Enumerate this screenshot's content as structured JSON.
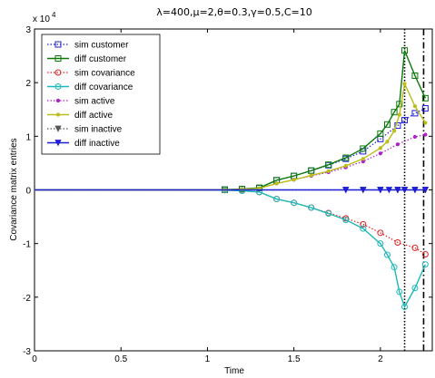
{
  "chart_data": {
    "type": "line",
    "title": "λ=400,μ=2,θ=0.3,γ=0.5,C=10",
    "xlabel": "Time",
    "ylabel": "Covariance matrix entries",
    "y_exponent_label": "x 10",
    "y_exponent_power": "4",
    "xlim": [
      0,
      2.3
    ],
    "ylim": [
      -30000,
      30000
    ],
    "xticks": [
      0,
      0.5,
      1,
      1.5,
      2
    ],
    "xtick_labels": [
      "0",
      "0.5",
      "1",
      "1.5",
      "2"
    ],
    "yticks": [
      -30000,
      -20000,
      -10000,
      0,
      10000,
      20000,
      30000
    ],
    "ytick_labels": [
      "-3",
      "-2",
      "-1",
      "0",
      "1",
      "2",
      "3"
    ],
    "grid": false,
    "legend_position": "top-left",
    "vlines": [
      {
        "x": 2.14,
        "style": "dotted",
        "color": "#000000"
      },
      {
        "x": 2.25,
        "style": "dashdot",
        "color": "#000000"
      }
    ],
    "series": [
      {
        "name": "sim customer",
        "color": "#1f1fd6",
        "line": "dotted",
        "marker": "square",
        "points": [
          [
            0.0,
            0
          ],
          [
            0.1,
            0
          ],
          [
            0.2,
            0
          ],
          [
            0.3,
            0
          ],
          [
            0.4,
            0
          ],
          [
            0.5,
            0
          ],
          [
            0.6,
            0
          ],
          [
            0.7,
            0
          ],
          [
            0.8,
            0
          ],
          [
            0.9,
            0
          ],
          [
            1.0,
            0
          ],
          [
            1.1,
            50
          ],
          [
            1.2,
            150
          ],
          [
            1.3,
            350
          ],
          [
            1.4,
            1800
          ],
          [
            1.5,
            2600
          ],
          [
            1.6,
            3600
          ],
          [
            1.7,
            4600
          ],
          [
            1.8,
            5800
          ],
          [
            1.9,
            7200
          ],
          [
            2.0,
            9500
          ],
          [
            2.1,
            12000
          ],
          [
            2.14,
            13000
          ],
          [
            2.2,
            14300
          ],
          [
            2.26,
            15200
          ]
        ]
      },
      {
        "name": "diff customer",
        "color": "#0a7a0a",
        "line": "solid",
        "marker": "square",
        "points": [
          [
            0.0,
            0
          ],
          [
            0.1,
            0
          ],
          [
            0.2,
            0
          ],
          [
            0.3,
            0
          ],
          [
            0.4,
            0
          ],
          [
            0.5,
            0
          ],
          [
            0.6,
            0
          ],
          [
            0.7,
            0
          ],
          [
            0.8,
            0
          ],
          [
            0.9,
            0
          ],
          [
            1.0,
            0
          ],
          [
            1.1,
            50
          ],
          [
            1.2,
            150
          ],
          [
            1.3,
            400
          ],
          [
            1.4,
            1800
          ],
          [
            1.5,
            2600
          ],
          [
            1.6,
            3600
          ],
          [
            1.7,
            4700
          ],
          [
            1.8,
            6000
          ],
          [
            1.9,
            7700
          ],
          [
            2.0,
            10500
          ],
          [
            2.04,
            12200
          ],
          [
            2.08,
            14500
          ],
          [
            2.11,
            16000
          ],
          [
            2.14,
            26000
          ],
          [
            2.2,
            21300
          ],
          [
            2.26,
            17100
          ]
        ]
      },
      {
        "name": "sim covariance",
        "color": "#e02020",
        "line": "dotted",
        "marker": "circle",
        "points": [
          [
            0.0,
            0
          ],
          [
            0.1,
            0
          ],
          [
            0.2,
            0
          ],
          [
            0.3,
            0
          ],
          [
            0.4,
            0
          ],
          [
            0.5,
            0
          ],
          [
            0.6,
            0
          ],
          [
            0.7,
            0
          ],
          [
            0.8,
            0
          ],
          [
            0.9,
            0
          ],
          [
            1.0,
            0
          ],
          [
            1.1,
            -50
          ],
          [
            1.2,
            -150
          ],
          [
            1.3,
            -400
          ],
          [
            1.4,
            -1700
          ],
          [
            1.5,
            -2400
          ],
          [
            1.6,
            -3300
          ],
          [
            1.7,
            -4300
          ],
          [
            1.8,
            -5300
          ],
          [
            1.9,
            -6400
          ],
          [
            2.0,
            -8000
          ],
          [
            2.1,
            -9800
          ],
          [
            2.2,
            -10800
          ],
          [
            2.26,
            -12000
          ]
        ]
      },
      {
        "name": "diff covariance",
        "color": "#1fb8b8",
        "line": "solid",
        "marker": "circle",
        "points": [
          [
            0.0,
            0
          ],
          [
            0.1,
            0
          ],
          [
            0.2,
            0
          ],
          [
            0.3,
            0
          ],
          [
            0.4,
            0
          ],
          [
            0.5,
            0
          ],
          [
            0.6,
            0
          ],
          [
            0.7,
            0
          ],
          [
            0.8,
            0
          ],
          [
            0.9,
            0
          ],
          [
            1.0,
            0
          ],
          [
            1.1,
            -50
          ],
          [
            1.2,
            -150
          ],
          [
            1.3,
            -400
          ],
          [
            1.4,
            -1700
          ],
          [
            1.5,
            -2400
          ],
          [
            1.6,
            -3300
          ],
          [
            1.7,
            -4400
          ],
          [
            1.8,
            -5600
          ],
          [
            1.9,
            -7200
          ],
          [
            2.0,
            -10000
          ],
          [
            2.04,
            -12100
          ],
          [
            2.08,
            -14400
          ],
          [
            2.11,
            -19000
          ],
          [
            2.14,
            -21800
          ],
          [
            2.2,
            -18300
          ],
          [
            2.26,
            -13900
          ]
        ]
      },
      {
        "name": "sim active",
        "color": "#b020c8",
        "line": "dotted",
        "marker": "dot",
        "points": [
          [
            0.0,
            0
          ],
          [
            0.1,
            0
          ],
          [
            0.2,
            0
          ],
          [
            0.3,
            0
          ],
          [
            0.4,
            0
          ],
          [
            0.5,
            0
          ],
          [
            0.6,
            0
          ],
          [
            0.7,
            0
          ],
          [
            0.8,
            0
          ],
          [
            0.9,
            0
          ],
          [
            1.0,
            0
          ],
          [
            1.1,
            50
          ],
          [
            1.2,
            100
          ],
          [
            1.3,
            300
          ],
          [
            1.4,
            1200
          ],
          [
            1.5,
            1900
          ],
          [
            1.6,
            2600
          ],
          [
            1.7,
            3300
          ],
          [
            1.8,
            4200
          ],
          [
            1.9,
            5300
          ],
          [
            2.0,
            6800
          ],
          [
            2.1,
            8500
          ],
          [
            2.2,
            9900
          ],
          [
            2.26,
            10300
          ]
        ]
      },
      {
        "name": "diff active",
        "color": "#bcbc1a",
        "line": "solid",
        "marker": "dot",
        "points": [
          [
            0.0,
            0
          ],
          [
            0.1,
            0
          ],
          [
            0.2,
            0
          ],
          [
            0.3,
            0
          ],
          [
            0.4,
            0
          ],
          [
            0.5,
            0
          ],
          [
            0.6,
            0
          ],
          [
            0.7,
            0
          ],
          [
            0.8,
            0
          ],
          [
            0.9,
            0
          ],
          [
            1.0,
            0
          ],
          [
            1.1,
            50
          ],
          [
            1.2,
            100
          ],
          [
            1.3,
            300
          ],
          [
            1.4,
            1200
          ],
          [
            1.5,
            1900
          ],
          [
            1.6,
            2700
          ],
          [
            1.7,
            3500
          ],
          [
            1.8,
            4500
          ],
          [
            1.9,
            5800
          ],
          [
            2.0,
            7800
          ],
          [
            2.04,
            9000
          ],
          [
            2.08,
            11000
          ],
          [
            2.11,
            14000
          ],
          [
            2.14,
            19800
          ],
          [
            2.2,
            15600
          ],
          [
            2.26,
            12500
          ]
        ]
      },
      {
        "name": "sim inactive",
        "color": "#555555",
        "line": "dotted",
        "marker": "triangle-down",
        "points": [
          [
            0.0,
            0
          ],
          [
            0.1,
            0
          ],
          [
            0.2,
            0
          ],
          [
            0.3,
            0
          ],
          [
            0.4,
            0
          ],
          [
            0.5,
            0
          ],
          [
            0.6,
            0
          ],
          [
            0.7,
            0
          ],
          [
            0.8,
            0
          ],
          [
            0.9,
            0
          ],
          [
            1.0,
            0
          ],
          [
            1.1,
            0
          ],
          [
            1.2,
            0
          ],
          [
            1.3,
            0
          ],
          [
            1.4,
            0
          ],
          [
            1.5,
            0
          ],
          [
            1.6,
            0
          ],
          [
            1.7,
            0
          ],
          [
            1.8,
            0
          ],
          [
            1.9,
            0
          ],
          [
            2.0,
            0
          ],
          [
            2.1,
            0
          ],
          [
            2.14,
            0
          ],
          [
            2.2,
            0
          ],
          [
            2.26,
            0
          ]
        ]
      },
      {
        "name": "diff inactive",
        "color": "#1f1fd6",
        "line": "solid",
        "marker": "triangle-down",
        "points": [
          [
            0.0,
            0
          ],
          [
            0.1,
            0
          ],
          [
            0.2,
            0
          ],
          [
            0.3,
            0
          ],
          [
            0.4,
            0
          ],
          [
            0.5,
            0
          ],
          [
            0.6,
            0
          ],
          [
            0.7,
            0
          ],
          [
            0.8,
            0
          ],
          [
            0.9,
            0
          ],
          [
            1.0,
            0
          ],
          [
            1.1,
            0
          ],
          [
            1.2,
            0
          ],
          [
            1.3,
            0
          ],
          [
            1.4,
            0
          ],
          [
            1.5,
            0
          ],
          [
            1.6,
            0
          ],
          [
            1.7,
            0
          ],
          [
            1.8,
            0
          ],
          [
            1.9,
            0
          ],
          [
            2.0,
            0
          ],
          [
            2.05,
            0
          ],
          [
            2.1,
            0
          ],
          [
            2.14,
            0
          ],
          [
            2.2,
            0
          ],
          [
            2.26,
            0
          ]
        ]
      }
    ]
  }
}
